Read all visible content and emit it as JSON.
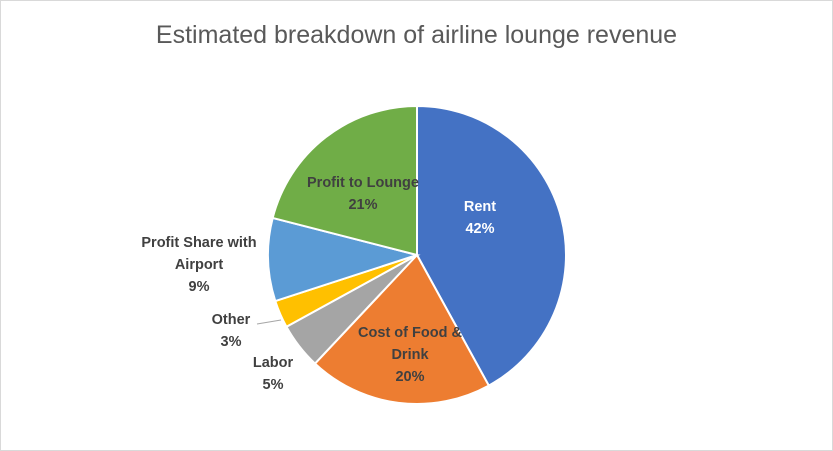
{
  "chart_data": {
    "type": "pie",
    "title": "Estimated breakdown of airline lounge revenue",
    "slices": [
      {
        "name": "Rent",
        "value": 42,
        "label": "42%",
        "color": "#4472c4",
        "label_color": "#ffffff"
      },
      {
        "name": "Cost of Food & Drink",
        "value": 20,
        "label": "20%",
        "color": "#ed7d31",
        "label_color": "#404040"
      },
      {
        "name": "Labor",
        "value": 5,
        "label": "5%",
        "color": "#a5a5a5",
        "label_color": "#404040"
      },
      {
        "name": "Other",
        "value": 3,
        "label": "3%",
        "color": "#ffc000",
        "label_color": "#404040"
      },
      {
        "name": "Profit Share with Airport",
        "value": 9,
        "label": "9%",
        "color": "#5b9bd5",
        "label_color": "#404040"
      },
      {
        "name": "Profit to Lounge",
        "value": 21,
        "label": "21%",
        "color": "#70ad47",
        "label_color": "#404040"
      }
    ],
    "legend": "none"
  }
}
